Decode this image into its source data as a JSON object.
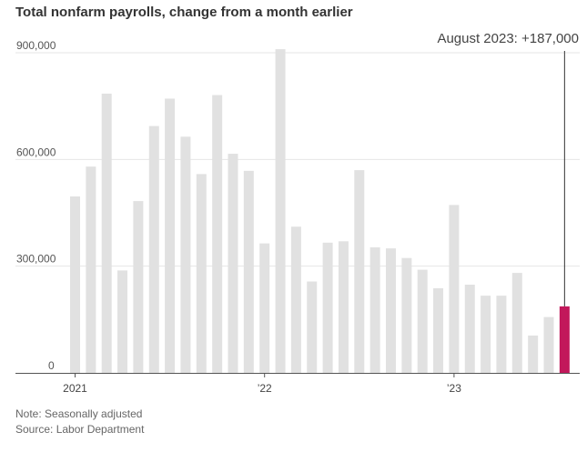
{
  "chart_data": {
    "type": "bar",
    "title": "Total nonfarm payrolls, change from a month earlier",
    "categories": [
      "2021-01",
      "2021-02",
      "2021-03",
      "2021-04",
      "2021-05",
      "2021-06",
      "2021-07",
      "2021-08",
      "2021-09",
      "2021-10",
      "2021-11",
      "2021-12",
      "2022-01",
      "2022-02",
      "2022-03",
      "2022-04",
      "2022-05",
      "2022-06",
      "2022-07",
      "2022-08",
      "2022-09",
      "2022-10",
      "2022-11",
      "2022-12",
      "2023-01",
      "2023-02",
      "2023-03",
      "2023-04",
      "2023-05",
      "2023-06",
      "2023-07",
      "2023-08"
    ],
    "values": [
      496000,
      580000,
      785000,
      288000,
      483000,
      694000,
      771000,
      664000,
      559000,
      781000,
      616000,
      568000,
      364000,
      910000,
      411000,
      257000,
      366000,
      370000,
      570000,
      353000,
      350000,
      323000,
      290000,
      238000,
      472000,
      248000,
      217000,
      217000,
      281000,
      105000,
      157000,
      187000
    ],
    "highlight_index": 31,
    "colors": {
      "bar": "#e1e1e1",
      "highlight": "#c2185b",
      "grid": "#e6e6e6",
      "axis": "#666666"
    },
    "ylim": [
      0,
      900000
    ],
    "yticks": [
      {
        "value": 0,
        "label": "0"
      },
      {
        "value": 300000,
        "label": "300,000"
      },
      {
        "value": 600000,
        "label": "600,000"
      },
      {
        "value": 900000,
        "label": "900,000"
      }
    ],
    "xticks": [
      {
        "index": 0,
        "label": "2021"
      },
      {
        "index": 12,
        "label": "’22"
      },
      {
        "index": 24,
        "label": "’23"
      }
    ],
    "annotation": "August 2023: +187,000",
    "grid": true,
    "xlabel": "",
    "ylabel": ""
  },
  "notes": {
    "note": "Note: Seasonally adjusted",
    "source": "Source: Labor Department"
  }
}
